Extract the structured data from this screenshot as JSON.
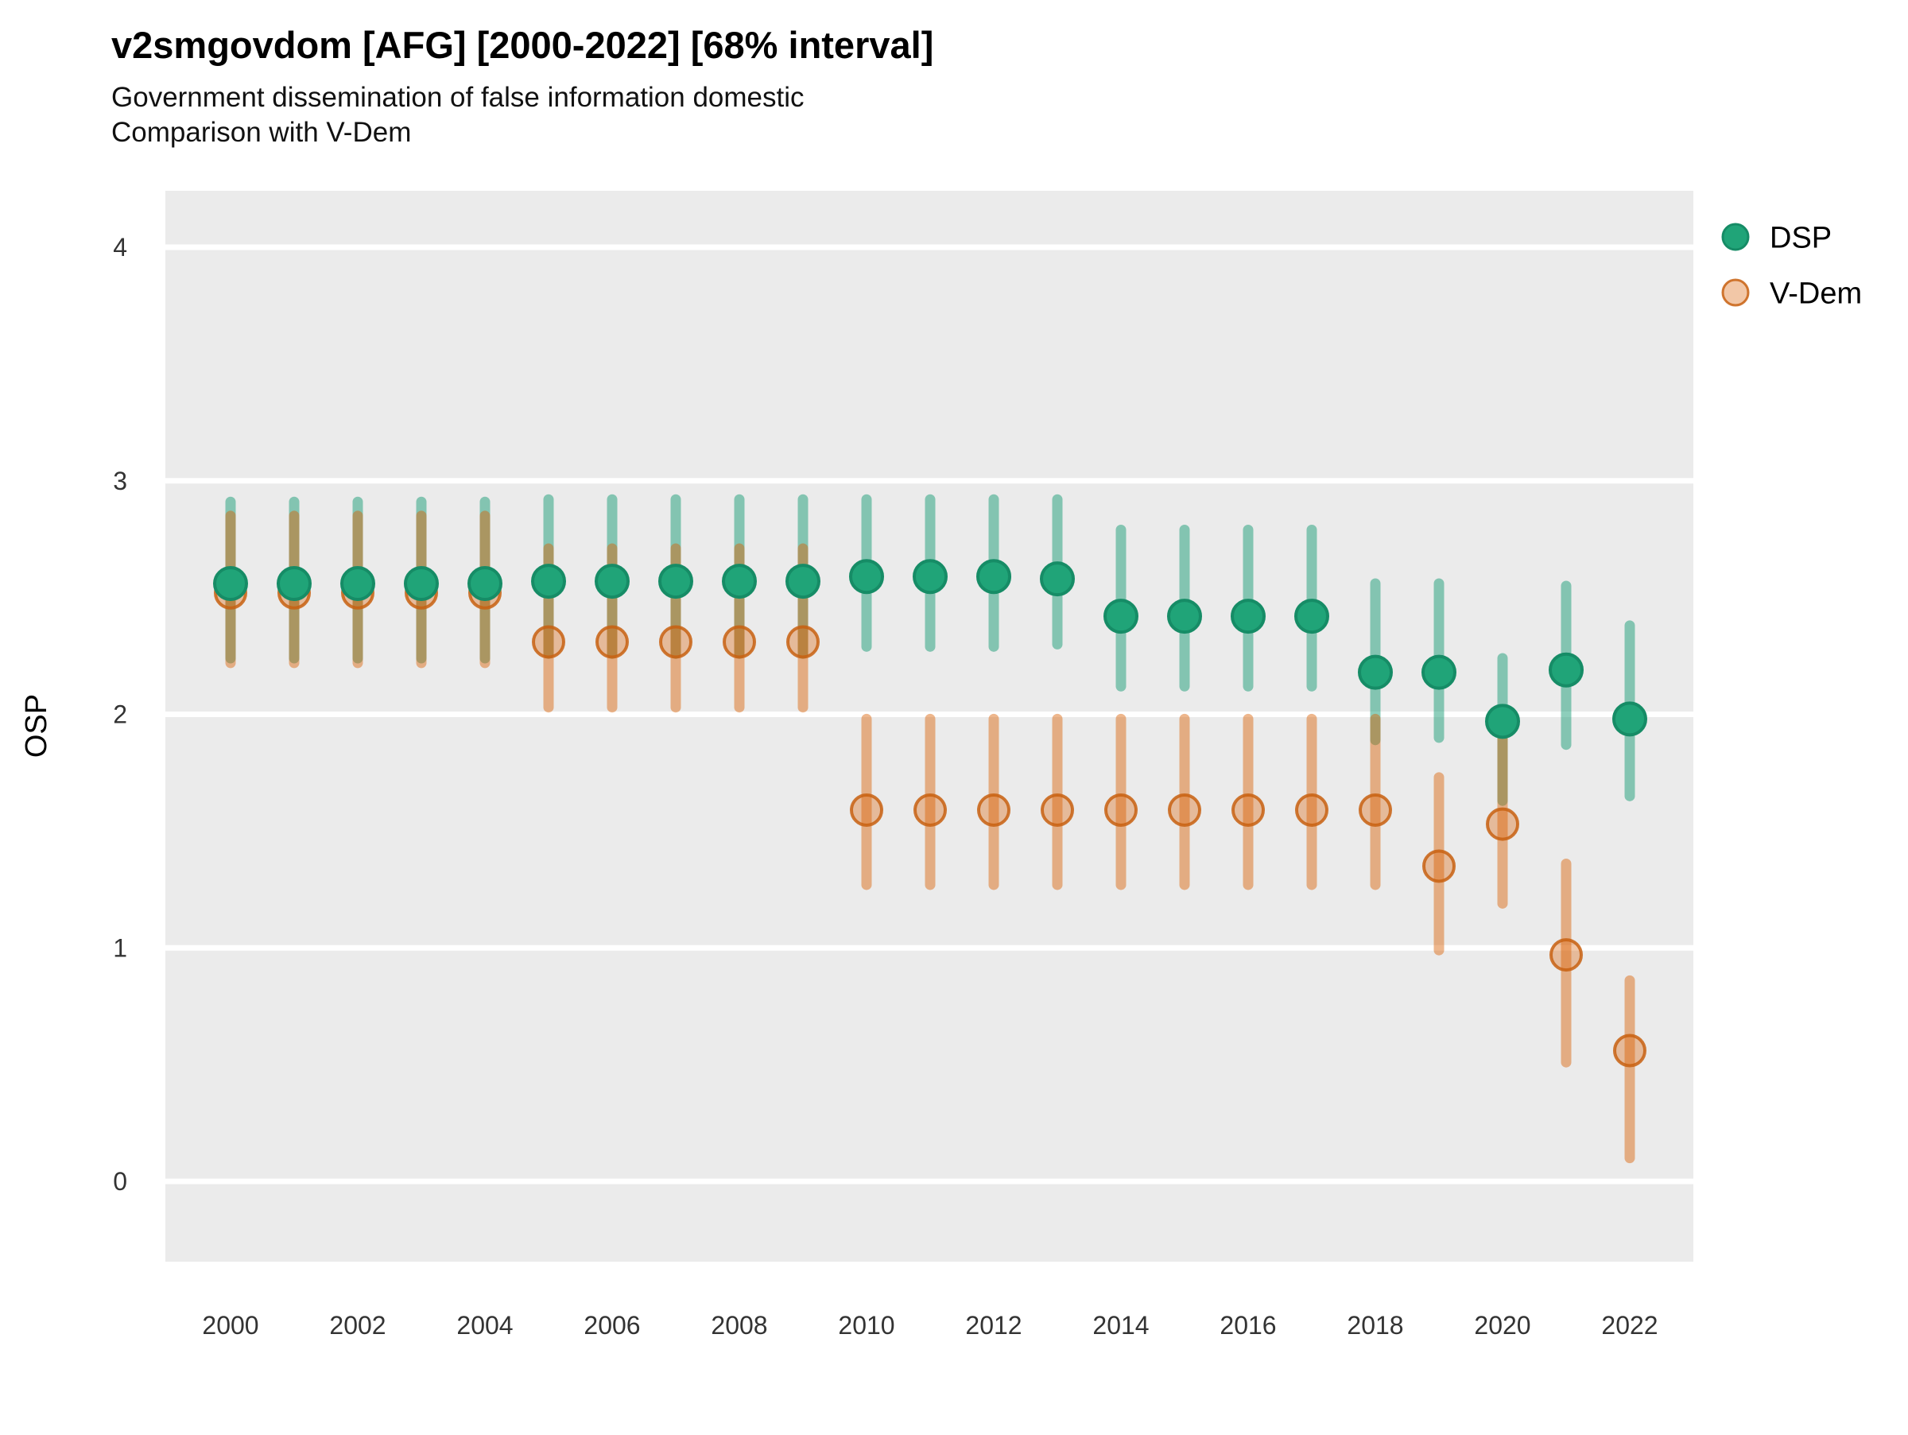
{
  "header": {
    "title": "v2smgovdom [AFG] [2000-2022] [68% interval]",
    "subtitle_line1": "Government dissemination of false information domestic",
    "subtitle_line2": "Comparison with V-Dem"
  },
  "colors": {
    "panel_background": "#EBEBEB",
    "gridline": "#FFFFFF",
    "dsp_base": "#1B9E77",
    "vdem_base": "#D95F02",
    "dsp_bar": "rgba(27,158,119,0.5)",
    "dsp_dot_fill": "#20A478",
    "dsp_dot_stroke": "#168C66",
    "vdem_bar": "rgba(217,95,2,0.45)",
    "vdem_dot_fill": "rgba(217,95,2,0.35)",
    "vdem_dot_stroke": "rgba(200,96,16,0.85)"
  },
  "legend": {
    "position": "right",
    "items": [
      {
        "label": "DSP"
      },
      {
        "label": "V-Dem"
      }
    ]
  },
  "chart_data": {
    "type": "pointrange",
    "title": "v2smgovdom [AFG] [2000-2022] [68% interval]",
    "subtitle": [
      "Government dissemination of false information domestic",
      "Comparison with V-Dem"
    ],
    "xlabel": "",
    "ylabel": "OSP",
    "interval_level": "68%",
    "x_ticks": [
      "2000",
      "2002",
      "2004",
      "2006",
      "2008",
      "2010",
      "2012",
      "2014",
      "2016",
      "2018",
      "2020",
      "2022"
    ],
    "y_ticks": [
      "0",
      "1",
      "2",
      "3",
      "4"
    ],
    "xlim": [
      1999,
      2023
    ],
    "ylim": [
      -0.35,
      4.25
    ],
    "grid": "horizontal-white-on-gray",
    "legend_position": "right",
    "series": [
      {
        "name": "DSP",
        "points": [
          {
            "year": 2000,
            "est": 2.56,
            "lo": 2.24,
            "hi": 2.91
          },
          {
            "year": 2001,
            "est": 2.56,
            "lo": 2.24,
            "hi": 2.91
          },
          {
            "year": 2002,
            "est": 2.56,
            "lo": 2.24,
            "hi": 2.91
          },
          {
            "year": 2003,
            "est": 2.56,
            "lo": 2.24,
            "hi": 2.91
          },
          {
            "year": 2004,
            "est": 2.56,
            "lo": 2.24,
            "hi": 2.91
          },
          {
            "year": 2005,
            "est": 2.57,
            "lo": 2.26,
            "hi": 2.92
          },
          {
            "year": 2006,
            "est": 2.57,
            "lo": 2.26,
            "hi": 2.92
          },
          {
            "year": 2007,
            "est": 2.57,
            "lo": 2.26,
            "hi": 2.92
          },
          {
            "year": 2008,
            "est": 2.57,
            "lo": 2.26,
            "hi": 2.92
          },
          {
            "year": 2009,
            "est": 2.57,
            "lo": 2.26,
            "hi": 2.92
          },
          {
            "year": 2010,
            "est": 2.59,
            "lo": 2.29,
            "hi": 2.92
          },
          {
            "year": 2011,
            "est": 2.59,
            "lo": 2.29,
            "hi": 2.92
          },
          {
            "year": 2012,
            "est": 2.59,
            "lo": 2.29,
            "hi": 2.92
          },
          {
            "year": 2013,
            "est": 2.58,
            "lo": 2.3,
            "hi": 2.92
          },
          {
            "year": 2014,
            "est": 2.42,
            "lo": 2.12,
            "hi": 2.79
          },
          {
            "year": 2015,
            "est": 2.42,
            "lo": 2.12,
            "hi": 2.79
          },
          {
            "year": 2016,
            "est": 2.42,
            "lo": 2.12,
            "hi": 2.79
          },
          {
            "year": 2017,
            "est": 2.42,
            "lo": 2.12,
            "hi": 2.79
          },
          {
            "year": 2018,
            "est": 2.18,
            "lo": 1.89,
            "hi": 2.56
          },
          {
            "year": 2019,
            "est": 2.18,
            "lo": 1.9,
            "hi": 2.56
          },
          {
            "year": 2020,
            "est": 1.97,
            "lo": 1.63,
            "hi": 2.24
          },
          {
            "year": 2021,
            "est": 2.19,
            "lo": 1.87,
            "hi": 2.55
          },
          {
            "year": 2022,
            "est": 1.98,
            "lo": 1.65,
            "hi": 2.38
          }
        ]
      },
      {
        "name": "V-Dem",
        "points": [
          {
            "year": 2000,
            "est": 2.52,
            "lo": 2.22,
            "hi": 2.85
          },
          {
            "year": 2001,
            "est": 2.52,
            "lo": 2.22,
            "hi": 2.85
          },
          {
            "year": 2002,
            "est": 2.52,
            "lo": 2.22,
            "hi": 2.85
          },
          {
            "year": 2003,
            "est": 2.52,
            "lo": 2.22,
            "hi": 2.85
          },
          {
            "year": 2004,
            "est": 2.52,
            "lo": 2.22,
            "hi": 2.85
          },
          {
            "year": 2005,
            "est": 2.31,
            "lo": 2.03,
            "hi": 2.71
          },
          {
            "year": 2006,
            "est": 2.31,
            "lo": 2.03,
            "hi": 2.71
          },
          {
            "year": 2007,
            "est": 2.31,
            "lo": 2.03,
            "hi": 2.71
          },
          {
            "year": 2008,
            "est": 2.31,
            "lo": 2.03,
            "hi": 2.71
          },
          {
            "year": 2009,
            "est": 2.31,
            "lo": 2.03,
            "hi": 2.71
          },
          {
            "year": 2010,
            "est": 1.59,
            "lo": 1.27,
            "hi": 1.98
          },
          {
            "year": 2011,
            "est": 1.59,
            "lo": 1.27,
            "hi": 1.98
          },
          {
            "year": 2012,
            "est": 1.59,
            "lo": 1.27,
            "hi": 1.98
          },
          {
            "year": 2013,
            "est": 1.59,
            "lo": 1.27,
            "hi": 1.98
          },
          {
            "year": 2014,
            "est": 1.59,
            "lo": 1.27,
            "hi": 1.98
          },
          {
            "year": 2015,
            "est": 1.59,
            "lo": 1.27,
            "hi": 1.98
          },
          {
            "year": 2016,
            "est": 1.59,
            "lo": 1.27,
            "hi": 1.98
          },
          {
            "year": 2017,
            "est": 1.59,
            "lo": 1.27,
            "hi": 1.98
          },
          {
            "year": 2018,
            "est": 1.59,
            "lo": 1.27,
            "hi": 1.98
          },
          {
            "year": 2019,
            "est": 1.35,
            "lo": 0.99,
            "hi": 1.73
          },
          {
            "year": 2020,
            "est": 1.53,
            "lo": 1.19,
            "hi": 1.91
          },
          {
            "year": 2021,
            "est": 0.97,
            "lo": 0.51,
            "hi": 1.36
          },
          {
            "year": 2022,
            "est": 0.56,
            "lo": 0.1,
            "hi": 0.86
          }
        ]
      }
    ]
  }
}
